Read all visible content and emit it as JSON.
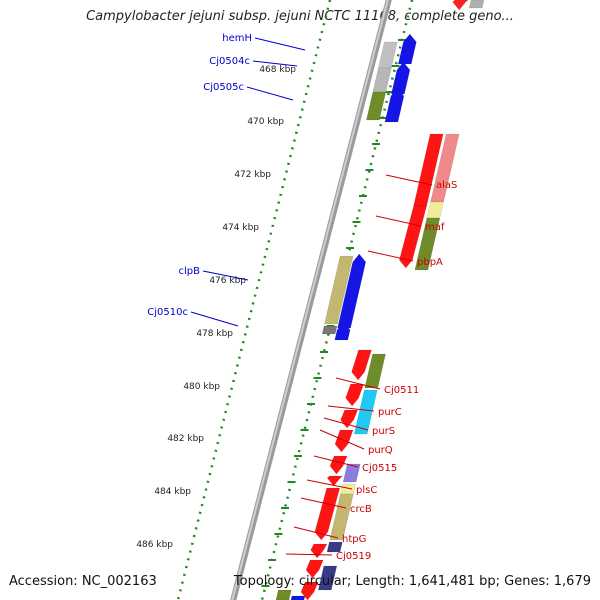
{
  "title": "Campylobacter jejuni subsp. jejuni NCTC 11168, complete geno...",
  "accession_label": "Accession: NC_002163",
  "topology_label": "Topology: circular; Length: 1,641,481 bp; Genes: 1,679",
  "colors": {
    "forward_label": "#0000cc",
    "reverse_label": "#cc0000",
    "backbone": "#888888",
    "ticks": "#228822"
  },
  "scale_labels": [
    "468 kbp",
    "470 kbp",
    "472 kbp",
    "474 kbp",
    "476 kbp",
    "478 kbp",
    "480 kbp",
    "482 kbp",
    "484 kbp",
    "486 kbp"
  ],
  "gene_labels": {
    "forward": [
      "hemH",
      "Cj0504c",
      "Cj0505c",
      "clpB",
      "Cj0510c"
    ],
    "reverse": [
      "alaS",
      "maf",
      "pbpA",
      "Cj0511",
      "purC",
      "purS",
      "purQ",
      "Cj0515",
      "plsC",
      "crcB",
      "htpG",
      "Cj0519"
    ]
  }
}
